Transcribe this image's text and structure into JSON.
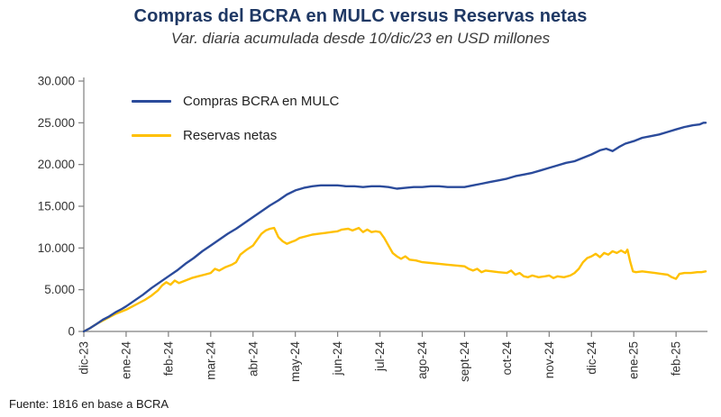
{
  "page": {
    "title": "Compras del BCRA en MULC versus Reservas netas",
    "subtitle": "Var. diaria acumulada desde 10/dic/23 en USD millones",
    "source": "Fuente: 1816 en base a BCRA"
  },
  "colors": {
    "title": "#1F3864",
    "axis_line": "#7f7f7f",
    "axis_text": "#333333",
    "blue_series": "#2B4B9B",
    "yellow_series": "#FFC000"
  },
  "chart_data": {
    "type": "line",
    "title": "Compras del BCRA en MULC versus Reservas netas",
    "subtitle": "Var. diaria acumulada desde 10/dic/23 en USD millones",
    "source": "Fuente: 1816 en base a BCRA",
    "grid": false,
    "legend_position": "inside-top-left",
    "x_axis": {
      "unit": "months since 10/dic/23",
      "tick_labels": [
        "dic-23",
        "ene-24",
        "feb-24",
        "mar-24",
        "abr-24",
        "may-24",
        "jun-24",
        "jul-24",
        "ago-24",
        "sept-24",
        "oct-24",
        "nov-24",
        "dic-24",
        "ene-25",
        "feb-25"
      ],
      "range": [
        0,
        14.7
      ]
    },
    "y_axis": {
      "tick_values": [
        0,
        5000,
        10000,
        15000,
        20000,
        25000,
        30000
      ],
      "tick_labels": [
        "0",
        "5.000",
        "10.000",
        "15.000",
        "20.000",
        "25.000",
        "30.000"
      ],
      "range": [
        0,
        30000
      ]
    },
    "series": [
      {
        "name": "Compras BCRA en MULC",
        "color": "#2B4B9B",
        "points": [
          [
            0,
            0
          ],
          [
            0.15,
            400
          ],
          [
            0.3,
            900
          ],
          [
            0.45,
            1400
          ],
          [
            0.6,
            1800
          ],
          [
            0.75,
            2300
          ],
          [
            0.9,
            2700
          ],
          [
            1.0,
            3000
          ],
          [
            1.2,
            3700
          ],
          [
            1.4,
            4400
          ],
          [
            1.6,
            5200
          ],
          [
            1.8,
            5900
          ],
          [
            2.0,
            6600
          ],
          [
            2.2,
            7300
          ],
          [
            2.4,
            8100
          ],
          [
            2.6,
            8800
          ],
          [
            2.8,
            9600
          ],
          [
            3.0,
            10300
          ],
          [
            3.2,
            11000
          ],
          [
            3.4,
            11700
          ],
          [
            3.6,
            12300
          ],
          [
            3.8,
            13000
          ],
          [
            4.0,
            13700
          ],
          [
            4.2,
            14400
          ],
          [
            4.4,
            15100
          ],
          [
            4.6,
            15700
          ],
          [
            4.8,
            16400
          ],
          [
            5.0,
            16900
          ],
          [
            5.2,
            17200
          ],
          [
            5.4,
            17400
          ],
          [
            5.6,
            17500
          ],
          [
            5.8,
            17500
          ],
          [
            6.0,
            17500
          ],
          [
            6.2,
            17400
          ],
          [
            6.4,
            17400
          ],
          [
            6.6,
            17300
          ],
          [
            6.8,
            17400
          ],
          [
            7.0,
            17400
          ],
          [
            7.2,
            17300
          ],
          [
            7.4,
            17100
          ],
          [
            7.6,
            17200
          ],
          [
            7.8,
            17300
          ],
          [
            8.0,
            17300
          ],
          [
            8.2,
            17400
          ],
          [
            8.4,
            17400
          ],
          [
            8.6,
            17300
          ],
          [
            8.8,
            17300
          ],
          [
            9.0,
            17300
          ],
          [
            9.2,
            17500
          ],
          [
            9.4,
            17700
          ],
          [
            9.6,
            17900
          ],
          [
            9.8,
            18100
          ],
          [
            10.0,
            18300
          ],
          [
            10.2,
            18600
          ],
          [
            10.4,
            18800
          ],
          [
            10.6,
            19000
          ],
          [
            10.8,
            19300
          ],
          [
            11.0,
            19600
          ],
          [
            11.2,
            19900
          ],
          [
            11.4,
            20200
          ],
          [
            11.6,
            20400
          ],
          [
            11.8,
            20800
          ],
          [
            12.0,
            21200
          ],
          [
            12.2,
            21700
          ],
          [
            12.35,
            21900
          ],
          [
            12.5,
            21600
          ],
          [
            12.65,
            22100
          ],
          [
            12.8,
            22500
          ],
          [
            13.0,
            22800
          ],
          [
            13.2,
            23200
          ],
          [
            13.4,
            23400
          ],
          [
            13.6,
            23600
          ],
          [
            13.8,
            23900
          ],
          [
            14.0,
            24200
          ],
          [
            14.2,
            24500
          ],
          [
            14.4,
            24700
          ],
          [
            14.55,
            24800
          ],
          [
            14.65,
            25000
          ],
          [
            14.7,
            25000
          ]
        ]
      },
      {
        "name": "Reservas netas",
        "color": "#FFC000",
        "points": [
          [
            0,
            0
          ],
          [
            0.15,
            400
          ],
          [
            0.3,
            900
          ],
          [
            0.45,
            1300
          ],
          [
            0.6,
            1700
          ],
          [
            0.75,
            2100
          ],
          [
            0.9,
            2400
          ],
          [
            1.0,
            2600
          ],
          [
            1.15,
            3000
          ],
          [
            1.3,
            3400
          ],
          [
            1.45,
            3800
          ],
          [
            1.6,
            4300
          ],
          [
            1.75,
            4900
          ],
          [
            1.85,
            5500
          ],
          [
            1.95,
            5900
          ],
          [
            2.05,
            5600
          ],
          [
            2.15,
            6100
          ],
          [
            2.25,
            5800
          ],
          [
            2.4,
            6100
          ],
          [
            2.55,
            6400
          ],
          [
            2.7,
            6600
          ],
          [
            2.85,
            6800
          ],
          [
            3.0,
            7000
          ],
          [
            3.1,
            7500
          ],
          [
            3.2,
            7300
          ],
          [
            3.35,
            7700
          ],
          [
            3.5,
            8000
          ],
          [
            3.6,
            8300
          ],
          [
            3.7,
            9200
          ],
          [
            3.85,
            9800
          ],
          [
            4.0,
            10300
          ],
          [
            4.1,
            11000
          ],
          [
            4.2,
            11700
          ],
          [
            4.3,
            12100
          ],
          [
            4.4,
            12300
          ],
          [
            4.5,
            12400
          ],
          [
            4.6,
            11300
          ],
          [
            4.7,
            10800
          ],
          [
            4.8,
            10500
          ],
          [
            4.9,
            10700
          ],
          [
            5.0,
            10900
          ],
          [
            5.1,
            11200
          ],
          [
            5.25,
            11400
          ],
          [
            5.4,
            11600
          ],
          [
            5.55,
            11700
          ],
          [
            5.7,
            11800
          ],
          [
            5.85,
            11900
          ],
          [
            6.0,
            12000
          ],
          [
            6.1,
            12200
          ],
          [
            6.25,
            12300
          ],
          [
            6.35,
            12100
          ],
          [
            6.5,
            12400
          ],
          [
            6.6,
            11900
          ],
          [
            6.7,
            12200
          ],
          [
            6.8,
            11900
          ],
          [
            6.9,
            12000
          ],
          [
            7.0,
            11900
          ],
          [
            7.1,
            11200
          ],
          [
            7.2,
            10300
          ],
          [
            7.3,
            9400
          ],
          [
            7.4,
            9000
          ],
          [
            7.5,
            8700
          ],
          [
            7.6,
            9000
          ],
          [
            7.7,
            8600
          ],
          [
            7.85,
            8500
          ],
          [
            8.0,
            8300
          ],
          [
            8.2,
            8200
          ],
          [
            8.4,
            8100
          ],
          [
            8.6,
            8000
          ],
          [
            8.8,
            7900
          ],
          [
            9.0,
            7800
          ],
          [
            9.1,
            7500
          ],
          [
            9.2,
            7300
          ],
          [
            9.3,
            7500
          ],
          [
            9.4,
            7100
          ],
          [
            9.5,
            7300
          ],
          [
            9.65,
            7200
          ],
          [
            9.8,
            7100
          ],
          [
            10.0,
            7000
          ],
          [
            10.1,
            7300
          ],
          [
            10.2,
            6800
          ],
          [
            10.3,
            7000
          ],
          [
            10.4,
            6600
          ],
          [
            10.5,
            6500
          ],
          [
            10.6,
            6700
          ],
          [
            10.75,
            6500
          ],
          [
            10.9,
            6600
          ],
          [
            11.0,
            6700
          ],
          [
            11.1,
            6400
          ],
          [
            11.2,
            6600
          ],
          [
            11.35,
            6500
          ],
          [
            11.5,
            6700
          ],
          [
            11.6,
            7000
          ],
          [
            11.7,
            7500
          ],
          [
            11.8,
            8300
          ],
          [
            11.9,
            8800
          ],
          [
            12.0,
            9000
          ],
          [
            12.1,
            9300
          ],
          [
            12.2,
            8900
          ],
          [
            12.3,
            9400
          ],
          [
            12.4,
            9200
          ],
          [
            12.5,
            9600
          ],
          [
            12.6,
            9400
          ],
          [
            12.7,
            9700
          ],
          [
            12.8,
            9400
          ],
          [
            12.85,
            9800
          ],
          [
            12.92,
            8300
          ],
          [
            12.98,
            7200
          ],
          [
            13.05,
            7100
          ],
          [
            13.2,
            7200
          ],
          [
            13.35,
            7100
          ],
          [
            13.5,
            7000
          ],
          [
            13.65,
            6900
          ],
          [
            13.8,
            6800
          ],
          [
            13.9,
            6500
          ],
          [
            14.0,
            6300
          ],
          [
            14.08,
            6900
          ],
          [
            14.2,
            7000
          ],
          [
            14.35,
            7000
          ],
          [
            14.5,
            7100
          ],
          [
            14.6,
            7100
          ],
          [
            14.7,
            7200
          ]
        ]
      }
    ]
  }
}
